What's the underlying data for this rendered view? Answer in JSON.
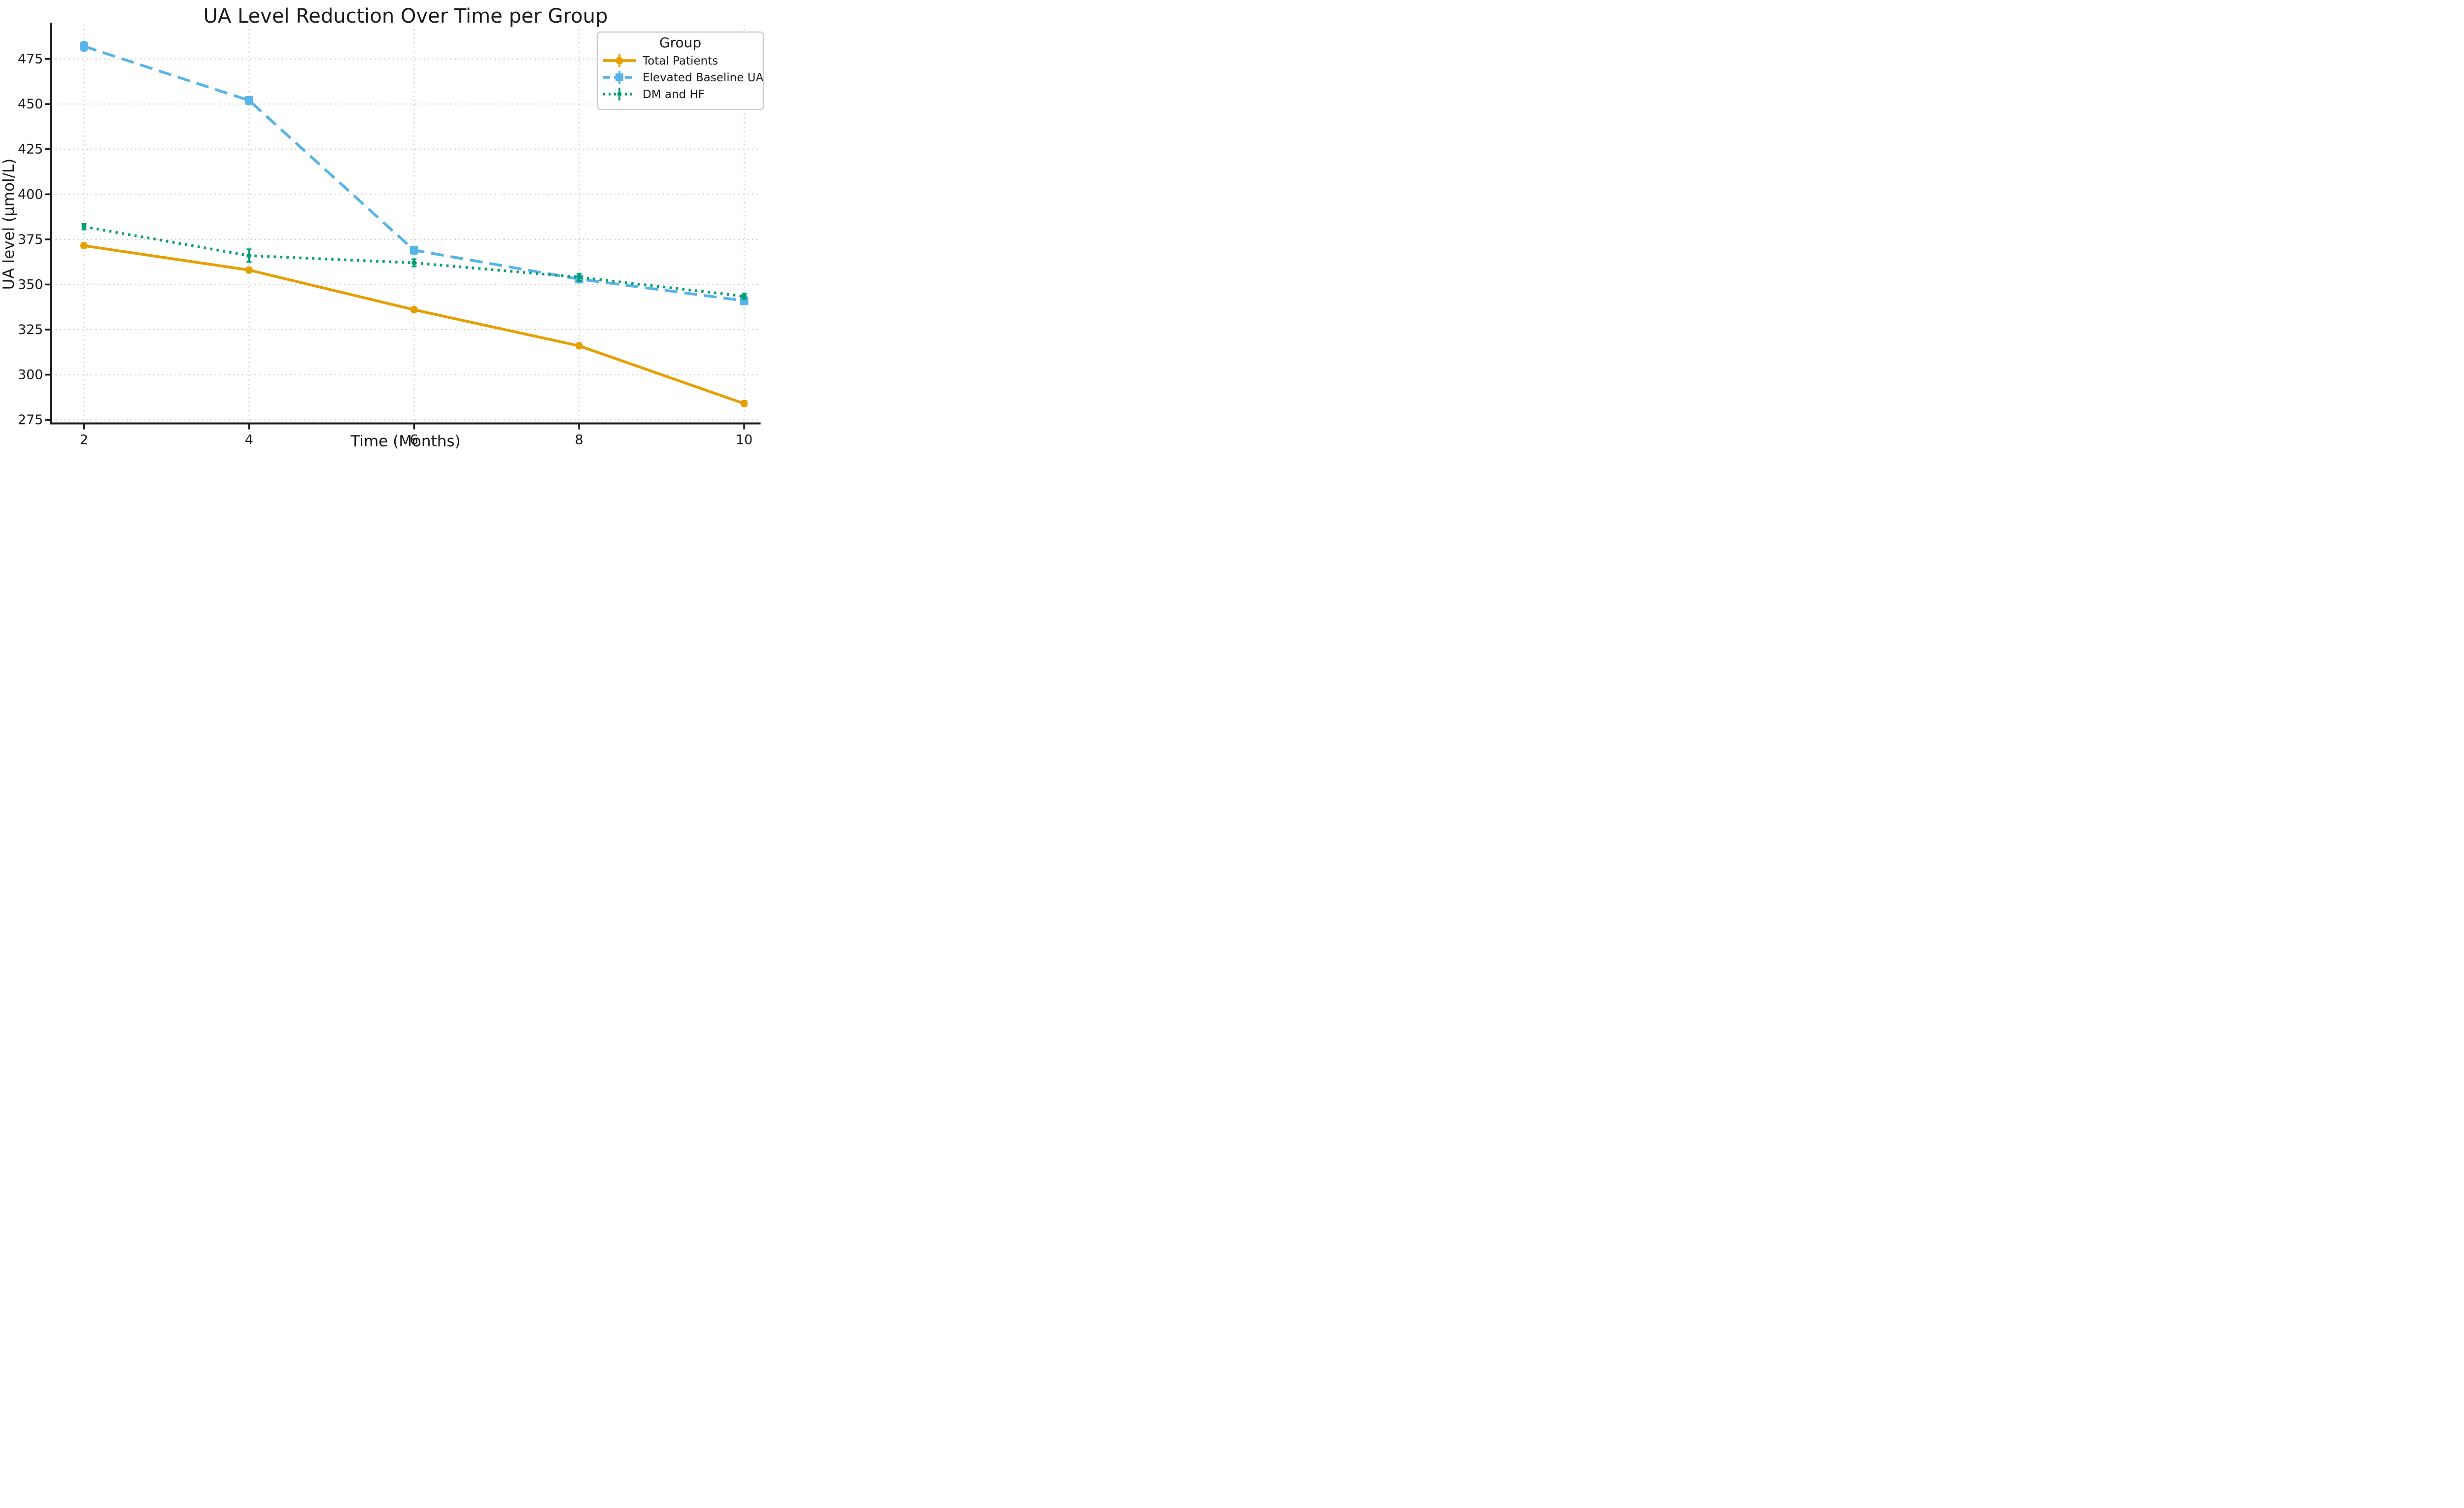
{
  "chart_data": {
    "type": "line",
    "title": "UA Level Reduction Over Time per Group",
    "xlabel": "Time (Months)",
    "ylabel": "UA level (μmol/L)",
    "x": [
      2,
      4,
      6,
      8,
      10
    ],
    "x_ticks": [
      "2",
      "4",
      "6",
      "8",
      "10"
    ],
    "y_ticks": [
      "275",
      "300",
      "325",
      "350",
      "375",
      "400",
      "425",
      "450",
      "475"
    ],
    "y_tick_values": [
      275,
      300,
      325,
      350,
      375,
      400,
      425,
      450,
      475
    ],
    "xlim": [
      1.6,
      10.2
    ],
    "ylim": [
      273,
      494
    ],
    "grid": "dotted, both axes",
    "legend": {
      "title": "Group",
      "position": "upper-right",
      "entries": [
        "Total Patients",
        "Elevated Baseline UA",
        "DM and HF"
      ]
    },
    "series": [
      {
        "name": "Total Patients",
        "color": "#E69F00",
        "line_style": "solid",
        "marker": "circle",
        "values": [
          371.5,
          358,
          336,
          316,
          284
        ],
        "errors": [
          1.5,
          1.5,
          1.5,
          1.5,
          1.5
        ]
      },
      {
        "name": "Elevated Baseline UA",
        "color": "#56B4E9",
        "line_style": "dashed",
        "marker": "square",
        "values": [
          482,
          452,
          369,
          353,
          341
        ],
        "errors": [
          2.5,
          2,
          2,
          2,
          2
        ]
      },
      {
        "name": "DM and HF",
        "color": "#009E73",
        "line_style": "dotted",
        "marker": "dot",
        "values": [
          382,
          366,
          362,
          354,
          343.5
        ],
        "errors": [
          1.5,
          3.5,
          2,
          2,
          1.5
        ]
      }
    ],
    "style": {
      "background": "#ffffff",
      "grid_color": "#cccccc",
      "axis_color": "#1a1a1a",
      "text_color": "#1a1a1a",
      "legend_border_color": "#cccccc"
    }
  }
}
